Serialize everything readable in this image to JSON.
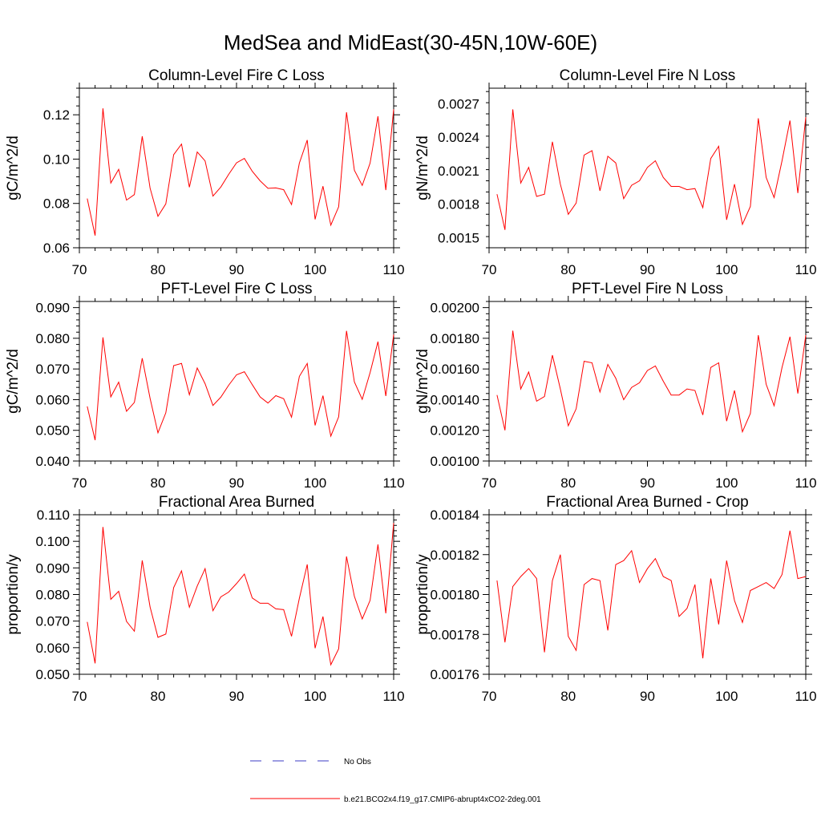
{
  "figure": {
    "title": "MedSea and MidEast(30-45N,10W-60E)",
    "background": "#ffffff",
    "series_color": "#ff0000",
    "obs_color": "#3b3bc4"
  },
  "legend": {
    "items": [
      {
        "label": "No Obs",
        "style": "dashed",
        "color": "#3b3bc4"
      },
      {
        "label": "b.e21.BCO2x4.f19_g17.CMIP6-abrupt4xCO2-2deg.001",
        "style": "solid",
        "color": "#ff0000"
      }
    ]
  },
  "chart_data": [
    {
      "type": "line",
      "title": "Column-Level Fire C Loss",
      "ylabel": "gC/m^2/d",
      "xlim": [
        70,
        110
      ],
      "ylim": [
        0.06,
        0.132
      ],
      "xticks": [
        70,
        80,
        90,
        100,
        110
      ],
      "xtick_labels": [
        "70",
        "80",
        "90",
        "100",
        "110"
      ],
      "yticks": [
        0.06,
        0.08,
        0.1,
        0.12
      ],
      "ytick_labels": [
        "0.06",
        "0.08",
        "0.10",
        "0.12"
      ],
      "y_minor_step": 0.004,
      "x": [
        71,
        72,
        73,
        74,
        75,
        76,
        77,
        78,
        79,
        80,
        81,
        82,
        83,
        84,
        85,
        86,
        87,
        88,
        89,
        90,
        91,
        92,
        93,
        94,
        95,
        96,
        97,
        98,
        99,
        100,
        101,
        102,
        103,
        104,
        105,
        106,
        107,
        108,
        109,
        110
      ],
      "series": [
        {
          "name": "b.e21.BCO2x4.f19_g17.CMIP6-abrupt4xCO2-2deg.001",
          "values": [
            0.0822,
            0.0655,
            0.1229,
            0.0892,
            0.0954,
            0.0815,
            0.084,
            0.1103,
            0.0869,
            0.0742,
            0.0798,
            0.102,
            0.1068,
            0.0873,
            0.1032,
            0.0992,
            0.0833,
            0.0874,
            0.0931,
            0.0983,
            0.1003,
            0.0945,
            0.0902,
            0.0868,
            0.087,
            0.0862,
            0.0795,
            0.0982,
            0.1086,
            0.0728,
            0.0878,
            0.0702,
            0.0785,
            0.1211,
            0.095,
            0.0881,
            0.0982,
            0.1193,
            0.086,
            0.1225
          ]
        }
      ]
    },
    {
      "type": "line",
      "title": "Column-Level Fire N Loss",
      "ylabel": "gN/m^2/d",
      "xlim": [
        70,
        110
      ],
      "ylim": [
        0.00141,
        0.00284
      ],
      "xticks": [
        70,
        80,
        90,
        100,
        110
      ],
      "xtick_labels": [
        "70",
        "80",
        "90",
        "100",
        "110"
      ],
      "yticks": [
        0.0015,
        0.0018,
        0.0021,
        0.0024,
        0.0027
      ],
      "ytick_labels": [
        "0.0015",
        "0.0018",
        "0.0021",
        "0.0024",
        "0.0027"
      ],
      "y_minor_step": 0.0001,
      "x": [
        71,
        72,
        73,
        74,
        75,
        76,
        77,
        78,
        79,
        80,
        81,
        82,
        83,
        84,
        85,
        86,
        87,
        88,
        89,
        90,
        91,
        92,
        93,
        94,
        95,
        96,
        97,
        98,
        99,
        100,
        101,
        102,
        103,
        104,
        105,
        106,
        107,
        108,
        109,
        110
      ],
      "series": [
        {
          "name": "b.e21.BCO2x4.f19_g17.CMIP6-abrupt4xCO2-2deg.001",
          "values": [
            0.00189,
            0.00157,
            0.00265,
            0.00199,
            0.00213,
            0.00187,
            0.00189,
            0.00236,
            0.00198,
            0.00171,
            0.00181,
            0.00224,
            0.00228,
            0.00192,
            0.00223,
            0.00217,
            0.00185,
            0.00197,
            0.00201,
            0.00213,
            0.00219,
            0.00204,
            0.00196,
            0.00196,
            0.00193,
            0.00194,
            0.00177,
            0.00221,
            0.00232,
            0.00166,
            0.00198,
            0.00162,
            0.00178,
            0.00257,
            0.00204,
            0.00186,
            0.00219,
            0.00255,
            0.0019,
            0.00258
          ]
        }
      ]
    },
    {
      "type": "line",
      "title": "PFT-Level Fire C Loss",
      "ylabel": "gC/m^2/d",
      "xlim": [
        70,
        110
      ],
      "ylim": [
        0.04,
        0.092
      ],
      "xticks": [
        70,
        80,
        90,
        100,
        110
      ],
      "xtick_labels": [
        "70",
        "80",
        "90",
        "100",
        "110"
      ],
      "yticks": [
        0.04,
        0.05,
        0.06,
        0.07,
        0.08,
        0.09
      ],
      "ytick_labels": [
        "0.040",
        "0.050",
        "0.060",
        "0.070",
        "0.080",
        "0.090"
      ],
      "y_minor_step": 0.002,
      "x": [
        71,
        72,
        73,
        74,
        75,
        76,
        77,
        78,
        79,
        80,
        81,
        82,
        83,
        84,
        85,
        86,
        87,
        88,
        89,
        90,
        91,
        92,
        93,
        94,
        95,
        96,
        97,
        98,
        99,
        100,
        101,
        102,
        103,
        104,
        105,
        106,
        107,
        108,
        109,
        110
      ],
      "series": [
        {
          "name": "b.e21.BCO2x4.f19_g17.CMIP6-abrupt4xCO2-2deg.001",
          "values": [
            0.0578,
            0.0468,
            0.0803,
            0.0609,
            0.0657,
            0.0562,
            0.0591,
            0.0735,
            0.0604,
            0.0492,
            0.0557,
            0.0711,
            0.0718,
            0.0616,
            0.0703,
            0.0652,
            0.0581,
            0.0608,
            0.0647,
            0.0681,
            0.0691,
            0.0649,
            0.0609,
            0.0589,
            0.0613,
            0.0603,
            0.0543,
            0.0676,
            0.0718,
            0.0516,
            0.0613,
            0.0481,
            0.0544,
            0.0824,
            0.0658,
            0.0601,
            0.0688,
            0.0789,
            0.0612,
            0.0812
          ]
        }
      ]
    },
    {
      "type": "line",
      "title": "PFT-Level Fire N Loss",
      "ylabel": "gN/m^2/d",
      "xlim": [
        70,
        110
      ],
      "ylim": [
        0.001,
        0.00204
      ],
      "xticks": [
        70,
        80,
        90,
        100,
        110
      ],
      "xtick_labels": [
        "70",
        "80",
        "90",
        "100",
        "110"
      ],
      "yticks": [
        0.001,
        0.0012,
        0.0014,
        0.0016,
        0.0018,
        0.002
      ],
      "ytick_labels": [
        "0.00100",
        "0.00120",
        "0.00140",
        "0.00160",
        "0.00180",
        "0.00200"
      ],
      "y_minor_step": 4e-05,
      "x": [
        71,
        72,
        73,
        74,
        75,
        76,
        77,
        78,
        79,
        80,
        81,
        82,
        83,
        84,
        85,
        86,
        87,
        88,
        89,
        90,
        91,
        92,
        93,
        94,
        95,
        96,
        97,
        98,
        99,
        100,
        101,
        102,
        103,
        104,
        105,
        106,
        107,
        108,
        109,
        110
      ],
      "series": [
        {
          "name": "b.e21.BCO2x4.f19_g17.CMIP6-abrupt4xCO2-2deg.001",
          "values": [
            0.00143,
            0.0012,
            0.00185,
            0.00147,
            0.00158,
            0.00139,
            0.00142,
            0.00169,
            0.00147,
            0.00123,
            0.00134,
            0.00165,
            0.00164,
            0.00145,
            0.00163,
            0.00154,
            0.0014,
            0.00148,
            0.00151,
            0.00159,
            0.00162,
            0.00152,
            0.00143,
            0.00143,
            0.00147,
            0.00146,
            0.0013,
            0.00161,
            0.00164,
            0.00126,
            0.00146,
            0.00119,
            0.00131,
            0.00182,
            0.0015,
            0.00136,
            0.00161,
            0.00181,
            0.00144,
            0.00182
          ]
        }
      ]
    },
    {
      "type": "line",
      "title": "Fractional Area Burned",
      "ylabel": "proportion/y",
      "xlim": [
        70,
        110
      ],
      "ylim": [
        0.05,
        0.11
      ],
      "xticks": [
        70,
        80,
        90,
        100,
        110
      ],
      "xtick_labels": [
        "70",
        "80",
        "90",
        "100",
        "110"
      ],
      "yticks": [
        0.05,
        0.06,
        0.07,
        0.08,
        0.09,
        0.1,
        0.11
      ],
      "ytick_labels": [
        "0.050",
        "0.060",
        "0.070",
        "0.080",
        "0.090",
        "0.100",
        "0.110"
      ],
      "y_minor_step": 0.002,
      "x": [
        71,
        72,
        73,
        74,
        75,
        76,
        77,
        78,
        79,
        80,
        81,
        82,
        83,
        84,
        85,
        86,
        87,
        88,
        89,
        90,
        91,
        92,
        93,
        94,
        95,
        96,
        97,
        98,
        99,
        100,
        101,
        102,
        103,
        104,
        105,
        106,
        107,
        108,
        109,
        110
      ],
      "series": [
        {
          "name": "b.e21.BCO2x4.f19_g17.CMIP6-abrupt4xCO2-2deg.001",
          "values": [
            0.0697,
            0.0541,
            0.1054,
            0.0782,
            0.0812,
            0.0699,
            0.0662,
            0.0928,
            0.0753,
            0.0639,
            0.0651,
            0.0826,
            0.0889,
            0.0752,
            0.0832,
            0.0897,
            0.0739,
            0.0791,
            0.0809,
            0.0841,
            0.0877,
            0.0787,
            0.0767,
            0.0767,
            0.0746,
            0.0743,
            0.0643,
            0.0786,
            0.0913,
            0.0598,
            0.0717,
            0.0536,
            0.0596,
            0.0943,
            0.0793,
            0.0708,
            0.0778,
            0.0988,
            0.0729,
            0.1069
          ]
        }
      ]
    },
    {
      "type": "line",
      "title": "Fractional Area Burned - Crop",
      "ylabel": "proportion/y",
      "xlim": [
        70,
        110
      ],
      "ylim": [
        0.00176,
        0.00184
      ],
      "xticks": [
        70,
        80,
        90,
        100,
        110
      ],
      "xtick_labels": [
        "70",
        "80",
        "90",
        "100",
        "110"
      ],
      "yticks": [
        0.00176,
        0.00178,
        0.0018,
        0.00182,
        0.00184
      ],
      "ytick_labels": [
        "0.00176",
        "0.00178",
        "0.00180",
        "0.00182",
        "0.00184"
      ],
      "y_minor_step": 4e-06,
      "x": [
        71,
        72,
        73,
        74,
        75,
        76,
        77,
        78,
        79,
        80,
        81,
        82,
        83,
        84,
        85,
        86,
        87,
        88,
        89,
        90,
        91,
        92,
        93,
        94,
        95,
        96,
        97,
        98,
        99,
        100,
        101,
        102,
        103,
        104,
        105,
        106,
        107,
        108,
        109,
        110
      ],
      "series": [
        {
          "name": "b.e21.BCO2x4.f19_g17.CMIP6-abrupt4xCO2-2deg.001",
          "values": [
            0.001807,
            0.001776,
            0.001804,
            0.001809,
            0.001813,
            0.001808,
            0.001771,
            0.001807,
            0.00182,
            0.001779,
            0.001772,
            0.001805,
            0.001808,
            0.001807,
            0.001782,
            0.001815,
            0.001817,
            0.001822,
            0.001806,
            0.001813,
            0.001818,
            0.001809,
            0.001807,
            0.001789,
            0.001793,
            0.001805,
            0.001768,
            0.001808,
            0.001785,
            0.001817,
            0.001797,
            0.001786,
            0.001802,
            0.001804,
            0.001806,
            0.001803,
            0.00181,
            0.001832,
            0.001808,
            0.001809
          ]
        }
      ]
    }
  ]
}
